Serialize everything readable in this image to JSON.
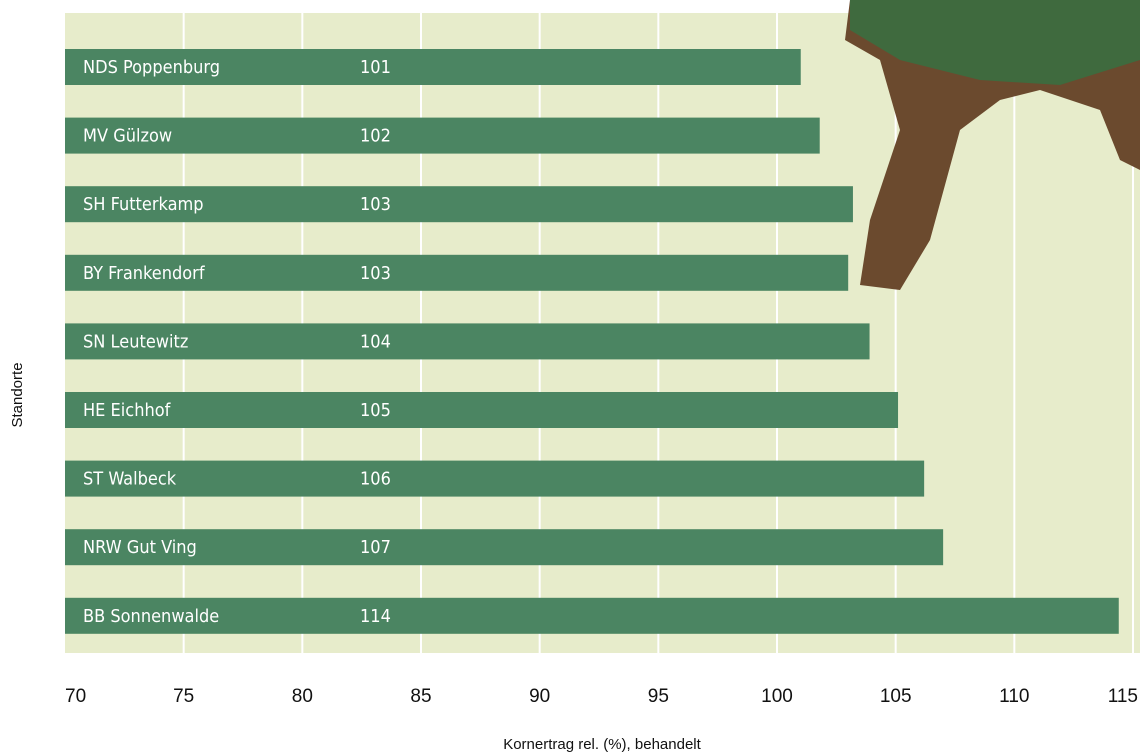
{
  "chart_data": {
    "type": "barh",
    "categories": [
      "NDS Poppenburg",
      "MV Gülzow",
      "SH Futterkamp",
      "BY Frankendorf",
      "SN Leutewitz",
      "HE Eichhof",
      "ST Walbeck",
      "NRW Gut Ving",
      "BB Sonnenwalde"
    ],
    "values": [
      101,
      101.8,
      103.2,
      103,
      103.9,
      105.1,
      106.2,
      107,
      114.4
    ],
    "value_labels": [
      "101",
      "102",
      "103",
      "103",
      "104",
      "105",
      "106",
      "107",
      "114"
    ],
    "color": "#4b8562",
    "xlim": [
      70,
      115
    ],
    "xticks": [
      70,
      75,
      80,
      85,
      90,
      95,
      100,
      105,
      110,
      115
    ],
    "xlabel": "Kornertrag rel. (%), behandelt",
    "ylabel": "Standorte",
    "grid": true
  }
}
